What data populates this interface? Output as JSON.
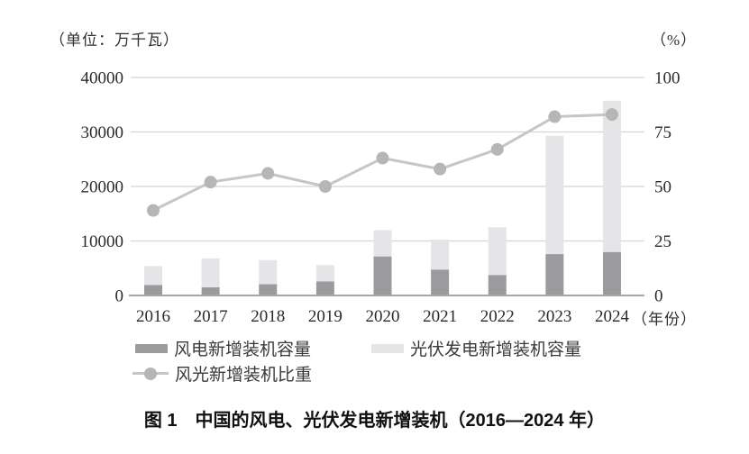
{
  "caption": "图 1　中国的风电、光伏发电新增装机（2016—2024 年）",
  "chart_data": {
    "type": "combo",
    "subtype": "stacked-bar-with-line",
    "title": "中国的风电、光伏发电新增装机（2016—2024 年）",
    "categories": [
      "2016",
      "2017",
      "2018",
      "2019",
      "2020",
      "2021",
      "2022",
      "2023",
      "2024"
    ],
    "left_axis": {
      "label": "（单位：万千瓦）",
      "ticks": [
        0,
        10000,
        20000,
        30000,
        40000
      ],
      "range": [
        0,
        40000
      ]
    },
    "right_axis": {
      "label": "（%）",
      "ticks": [
        0,
        25,
        50,
        75,
        100
      ],
      "range": [
        0,
        100
      ]
    },
    "x_axis": {
      "label": "（年份）"
    },
    "series": [
      {
        "name": "风电新增装机容量",
        "type": "bar",
        "stack": "new-installs",
        "axis": "left",
        "color": "#9b9b9d",
        "values": [
          1930,
          1503,
          2059,
          2574,
          7167,
          4757,
          3763,
          7590,
          7982
        ]
      },
      {
        "name": "光伏发电新增装机容量",
        "type": "bar",
        "stack": "new-installs",
        "axis": "left",
        "color": "#e5e5e7",
        "values": [
          3454,
          5306,
          4426,
          3011,
          4820,
          5488,
          8741,
          21688,
          27757
        ]
      },
      {
        "name": "风光新增装机比重",
        "type": "line",
        "axis": "right",
        "color": "#c6c6c6",
        "marker_color": "#b6b6b6",
        "values": [
          39,
          52,
          56,
          50,
          63,
          58,
          67,
          82,
          83
        ]
      }
    ],
    "grid": true,
    "legend_position": "bottom",
    "colors": {
      "gridline": "#d4d4d4",
      "axis_line": "#a6a6a6",
      "text": "#2a2a2a",
      "background": "#ffffff"
    }
  }
}
